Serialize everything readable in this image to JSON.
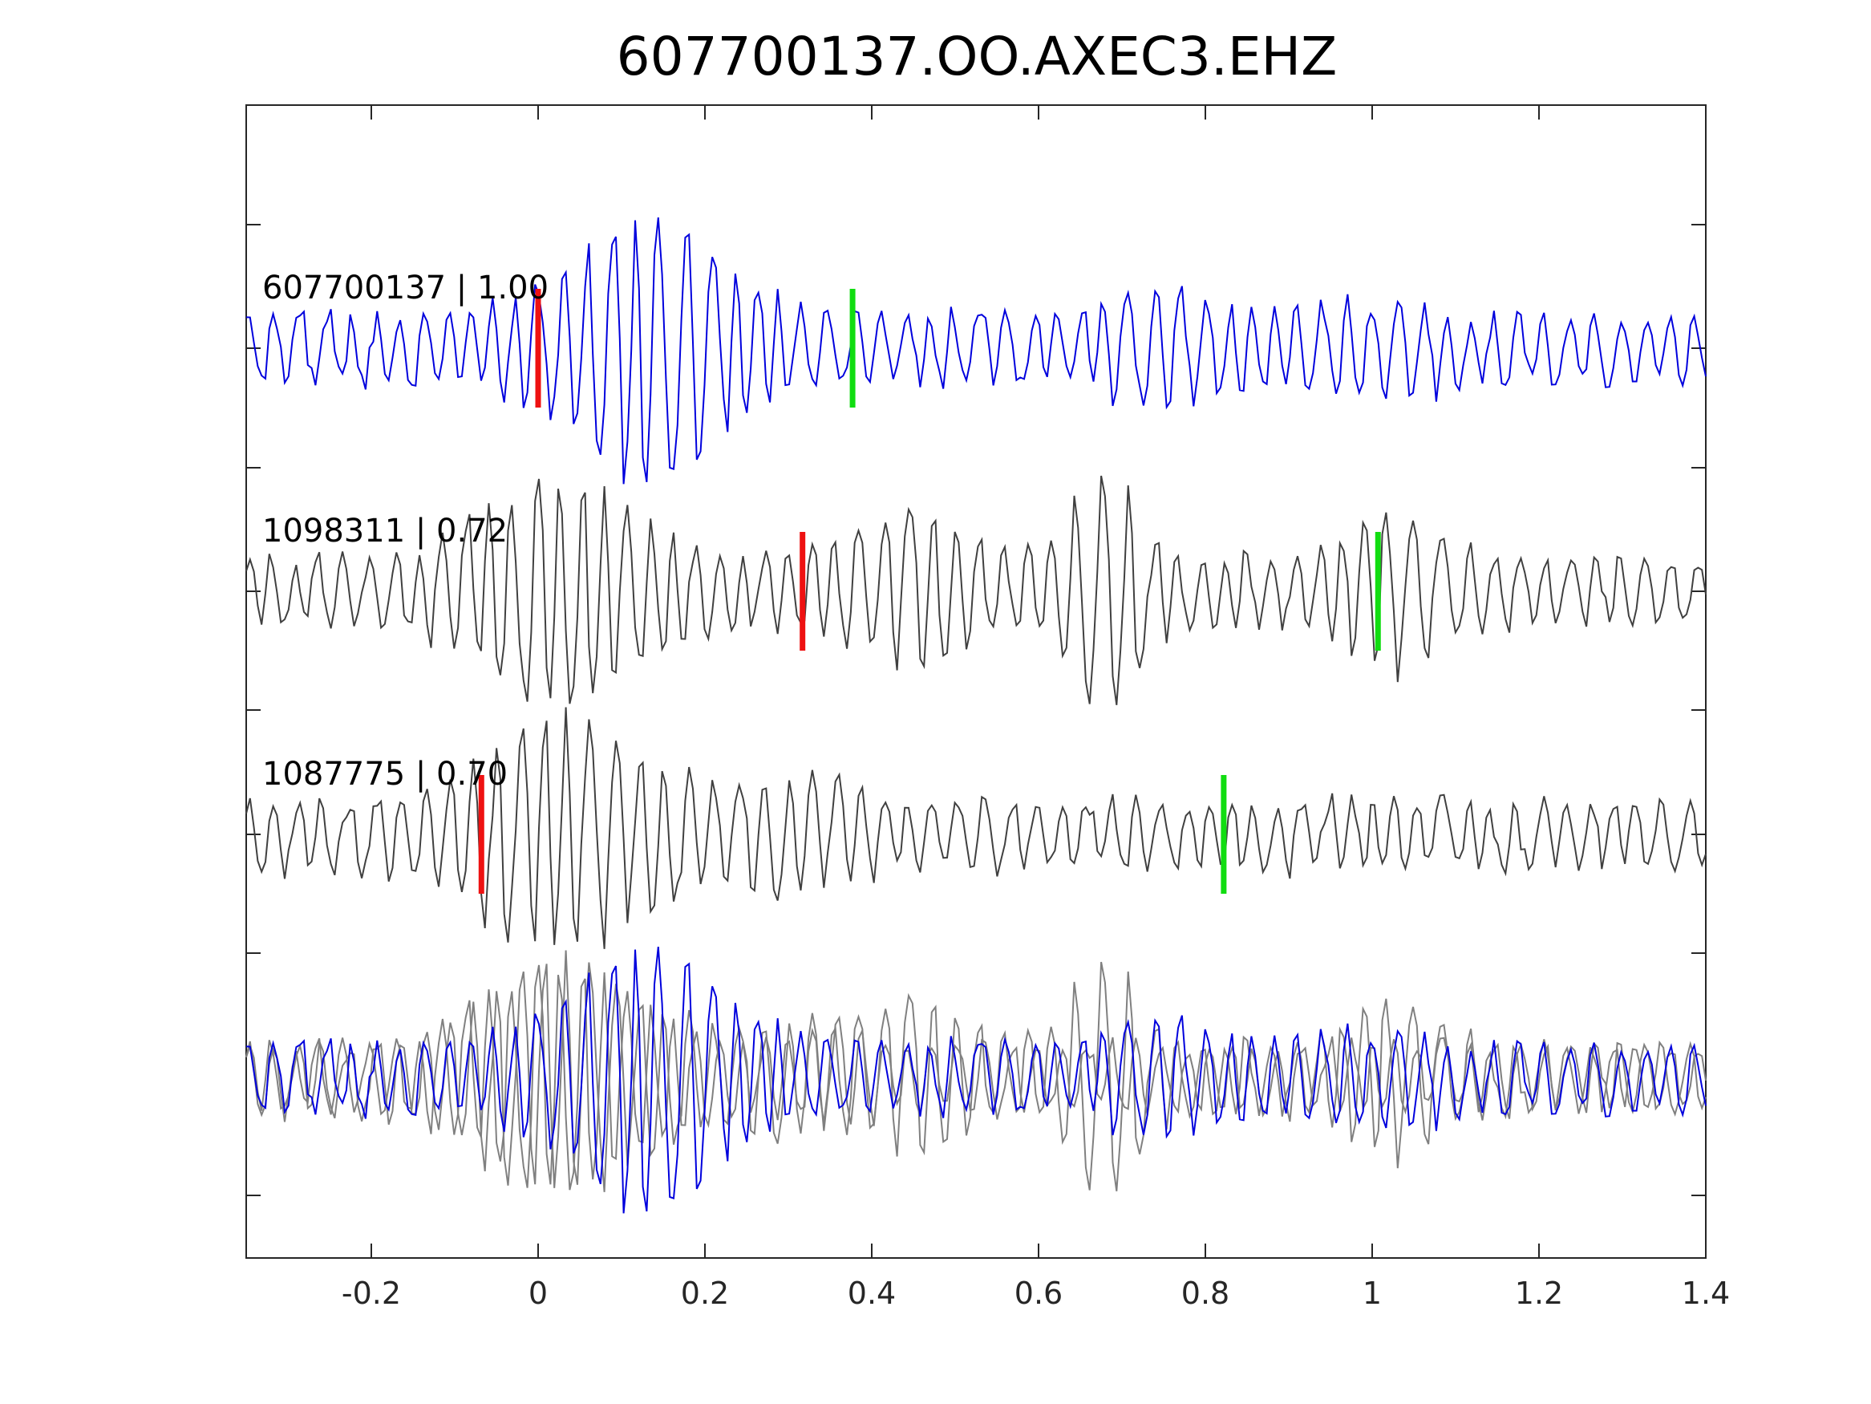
{
  "chart_data": {
    "type": "line",
    "title": "607700137.OO.AXEC3.EHZ",
    "xlabel": "",
    "ylabel": "",
    "xlim": [
      -0.35,
      1.4
    ],
    "x_ticks": [
      "-0.2",
      "0",
      "0.2",
      "0.4",
      "0.6",
      "0.8",
      "1",
      "1.2",
      "1.4"
    ],
    "x_tick_values": [
      -0.2,
      0,
      0.2,
      0.4,
      0.6,
      0.8,
      1,
      1.2,
      1.4
    ],
    "y_ticks_labeled": false,
    "grid": false,
    "legend": "none",
    "colors": {
      "reference_trace": "#0000dd",
      "other_trace": "#404040",
      "overlay_trace": "#808080",
      "p_pick": "#ee1111",
      "s_pick": "#11dd11",
      "axes": "#262626"
    },
    "series": [
      {
        "label": "607700137 | 1.00",
        "color": "#0000dd",
        "row": 0,
        "p_pick": 0.0,
        "s_pick": 0.377
      },
      {
        "label": "1098311 | 0.72",
        "color": "#404040",
        "row": 1,
        "p_pick": 0.317,
        "s_pick": 1.007
      },
      {
        "label": "1087775 | 0.70",
        "color": "#404040",
        "row": 2,
        "p_pick": -0.068,
        "s_pick": 0.822
      }
    ],
    "overlay": {
      "row": 3,
      "series": [
        "607700137 | 1.00",
        "1098311 | 0.72",
        "1087775 | 0.70"
      ]
    }
  }
}
